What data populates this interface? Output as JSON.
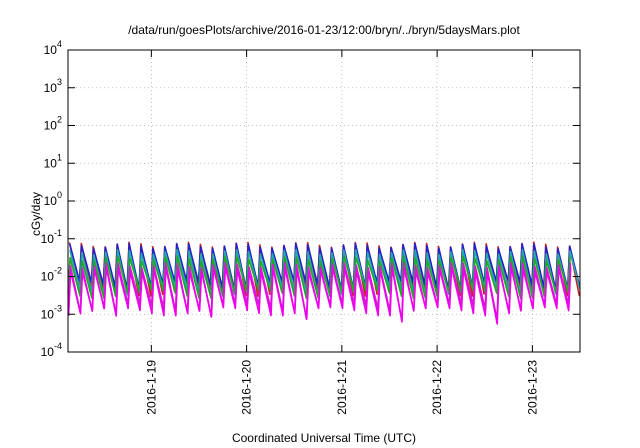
{
  "chart_data": {
    "type": "line",
    "title": "/data/run/goesPlots/archive/2016-01-23/12:00/bryn/../bryn/5daysMars.plot",
    "xlabel": "Coordinated Universal Time (UTC)",
    "ylabel": "cGy/day",
    "yscale": "log",
    "ylim": [
      0.0001,
      10000
    ],
    "xlim": [
      "2016-01-18 03:00",
      "2016-01-23 12:00"
    ],
    "y_ticks": [
      {
        "base": "10",
        "exp": "-4"
      },
      {
        "base": "10",
        "exp": "-3"
      },
      {
        "base": "10",
        "exp": "-2"
      },
      {
        "base": "10",
        "exp": "-1"
      },
      {
        "base": "10",
        "exp": "0"
      },
      {
        "base": "10",
        "exp": "1"
      },
      {
        "base": "10",
        "exp": "2"
      },
      {
        "base": "10",
        "exp": "3"
      },
      {
        "base": "10",
        "exp": "4"
      }
    ],
    "x_ticks": [
      "2016-1-19",
      "2016-1-20",
      "2016-1-21",
      "2016-1-22",
      "2016-1-23"
    ],
    "grid": true,
    "legend": "none",
    "notes": "Sawtooth pattern: each cycle ~3 hours, values drop to a low then rise sharply to a peak.",
    "cycle_hours": 3,
    "series": [
      {
        "color": "#cc2222",
        "peak": 0.07,
        "low": 0.004,
        "phase": 0.0
      },
      {
        "color": "#2222cc",
        "peak": 0.065,
        "low": 0.006,
        "phase": 0.02
      },
      {
        "color": "#22aaaa",
        "peak": 0.045,
        "low": 0.004,
        "phase": 0.04
      },
      {
        "color": "#22aa22",
        "peak": 0.03,
        "low": 0.0035,
        "phase": 0.06
      },
      {
        "color": "#cc22cc",
        "peak": 0.02,
        "low": 0.0015,
        "phase": 0.08
      },
      {
        "color": "#ee00ee",
        "peak": 0.015,
        "low": 0.0012,
        "phase": 0.1
      }
    ]
  }
}
